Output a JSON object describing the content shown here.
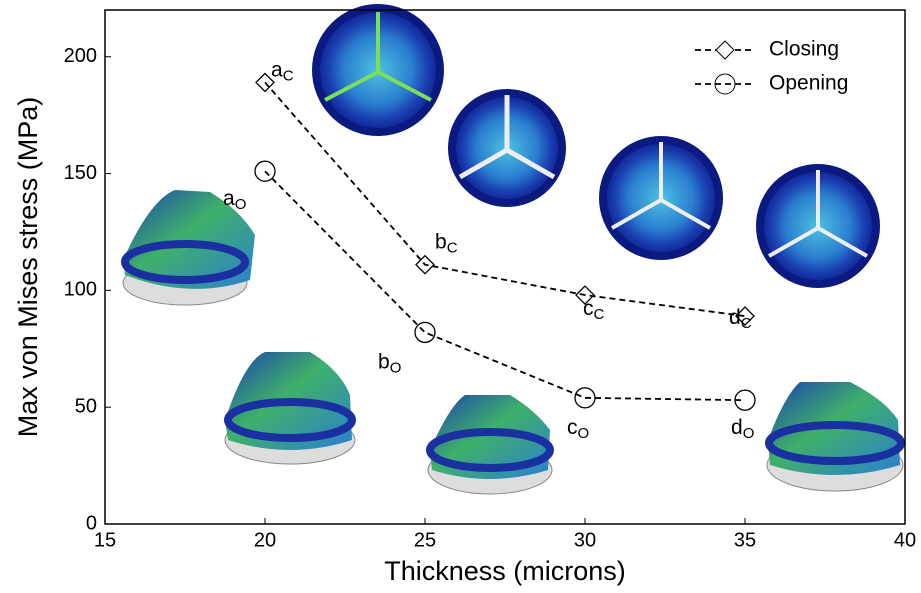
{
  "chart_data": {
    "type": "line",
    "x_label": "Thickness (microns)",
    "y_label": "Max von Mises  stress (MPa)",
    "xlim": [
      15,
      40
    ],
    "xticks": [
      15,
      20,
      25,
      30,
      35,
      40
    ],
    "ylim": [
      0,
      220
    ],
    "yticks": [
      0,
      50,
      100,
      150,
      200
    ],
    "legend_position": "upper right",
    "series": [
      {
        "name": "Closing",
        "color": "#000000",
        "marker": "diamond",
        "linestyle": "dashed",
        "x": [
          20,
          25,
          30,
          35
        ],
        "values": [
          189,
          111,
          98,
          89
        ],
        "point_labels": [
          {
            "base": "a",
            "sub": "C"
          },
          {
            "base": "b",
            "sub": "C"
          },
          {
            "base": "c",
            "sub": "C"
          },
          {
            "base": "d",
            "sub": "C"
          }
        ]
      },
      {
        "name": "Opening",
        "color": "#000000",
        "marker": "circle",
        "linestyle": "dashed",
        "x": [
          20,
          25,
          30,
          35
        ],
        "values": [
          151,
          82,
          54,
          53
        ],
        "point_labels": [
          {
            "base": "a",
            "sub": "O"
          },
          {
            "base": "b",
            "sub": "O"
          },
          {
            "base": "c",
            "sub": "O"
          },
          {
            "base": "d",
            "sub": "O"
          }
        ]
      }
    ]
  }
}
